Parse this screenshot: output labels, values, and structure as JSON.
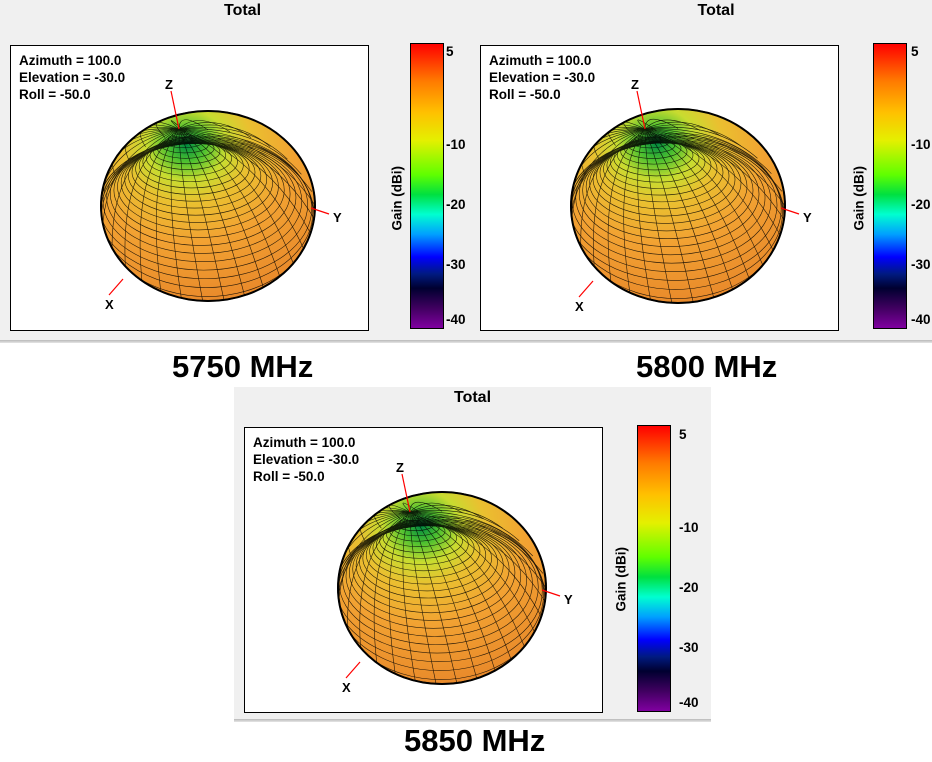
{
  "chart_data": [
    {
      "type": "3d-radiation-pattern",
      "title": "Total",
      "frequency_label": "5750 MHz",
      "view": {
        "azimuth_label": "Azimuth = 100.0",
        "elevation_label": "Elevation = -30.0",
        "roll_label": "Roll = -50.0"
      },
      "axes_labels": [
        "X",
        "Y",
        "Z"
      ],
      "colorbar": {
        "label": "Gain (dBi)",
        "ticks": [
          "5",
          "-10",
          "-20",
          "-30",
          "-40"
        ],
        "range": [
          -40,
          5
        ]
      }
    },
    {
      "type": "3d-radiation-pattern",
      "title": "Total",
      "frequency_label": "5800 MHz",
      "view": {
        "azimuth_label": "Azimuth = 100.0",
        "elevation_label": "Elevation = -30.0",
        "roll_label": "Roll = -50.0"
      },
      "axes_labels": [
        "X",
        "Y",
        "Z"
      ],
      "colorbar": {
        "label": "Gain (dBi)",
        "ticks": [
          "5",
          "-10",
          "-20",
          "-30",
          "-40"
        ],
        "range": [
          -40,
          5
        ]
      }
    },
    {
      "type": "3d-radiation-pattern",
      "title": "Total",
      "frequency_label": "5850 MHz",
      "view": {
        "azimuth_label": "Azimuth = 100.0",
        "elevation_label": "Elevation = -30.0",
        "roll_label": "Roll = -50.0"
      },
      "axes_labels": [
        "X",
        "Y",
        "Z"
      ],
      "colorbar": {
        "label": "Gain (dBi)",
        "ticks": [
          "5",
          "-10",
          "-20",
          "-30",
          "-40"
        ],
        "range": [
          -40,
          5
        ]
      }
    }
  ],
  "colors": {
    "pattern_main": "#f0a030",
    "pattern_top": "#d8e040",
    "axis_line": "#ff0000",
    "mesh": "#000000"
  }
}
